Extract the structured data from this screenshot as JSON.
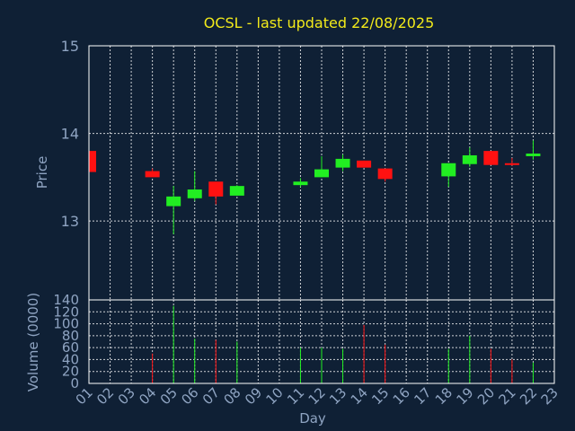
{
  "chart_data": {
    "type": "candlestick",
    "title": "OCSL - last updated 22/08/2025",
    "price_panel": {
      "ylabel": "Price",
      "ylim": [
        12.1,
        15
      ],
      "yticks": [
        "13",
        "14",
        "15"
      ],
      "grid": true
    },
    "volume_panel": {
      "ylabel": "Volume (0000)",
      "ylim": [
        0,
        140
      ],
      "yticks": [
        "0",
        "20",
        "40",
        "60",
        "80",
        "100",
        "120",
        "140"
      ],
      "grid": true
    },
    "xlabel": "Day",
    "x_ticks": [
      "01",
      "02",
      "03",
      "04",
      "05",
      "06",
      "07",
      "08",
      "09",
      "10",
      "11",
      "12",
      "13",
      "14",
      "15",
      "16",
      "17",
      "18",
      "19",
      "20",
      "21",
      "22",
      "23"
    ],
    "up_color": "#22ee22",
    "down_color": "#ff1111",
    "candles": [
      {
        "day": "01",
        "open": 13.8,
        "high": 13.82,
        "low": 13.56,
        "close": 13.56,
        "volume": 0
      },
      {
        "day": "04",
        "open": 13.57,
        "high": 13.6,
        "low": 13.5,
        "close": 13.5,
        "volume": 50
      },
      {
        "day": "05",
        "open": 13.17,
        "high": 13.4,
        "low": 12.85,
        "close": 13.28,
        "volume": 130
      },
      {
        "day": "06",
        "open": 13.26,
        "high": 13.57,
        "low": 13.23,
        "close": 13.36,
        "volume": 75
      },
      {
        "day": "07",
        "open": 13.45,
        "high": 13.45,
        "low": 13.19,
        "close": 13.28,
        "volume": 73
      },
      {
        "day": "08",
        "open": 13.29,
        "high": 13.41,
        "low": 13.29,
        "close": 13.4,
        "volume": 70
      },
      {
        "day": "11",
        "open": 13.41,
        "high": 13.49,
        "low": 13.39,
        "close": 13.45,
        "volume": 60
      },
      {
        "day": "12",
        "open": 13.5,
        "high": 13.74,
        "low": 13.5,
        "close": 13.59,
        "volume": 60
      },
      {
        "day": "13",
        "open": 13.61,
        "high": 13.76,
        "low": 13.57,
        "close": 13.71,
        "volume": 58
      },
      {
        "day": "14",
        "open": 13.69,
        "high": 13.69,
        "low": 13.61,
        "close": 13.61,
        "volume": 98
      },
      {
        "day": "15",
        "open": 13.6,
        "high": 13.6,
        "low": 13.45,
        "close": 13.48,
        "volume": 65
      },
      {
        "day": "18",
        "open": 13.51,
        "high": 13.66,
        "low": 13.39,
        "close": 13.66,
        "volume": 58
      },
      {
        "day": "19",
        "open": 13.65,
        "high": 13.84,
        "low": 13.62,
        "close": 13.75,
        "volume": 80
      },
      {
        "day": "20",
        "open": 13.8,
        "high": 13.8,
        "low": 13.64,
        "close": 13.64,
        "volume": 58
      },
      {
        "day": "21",
        "open": 13.66,
        "high": 13.72,
        "low": 13.63,
        "close": 13.64,
        "volume": 40
      },
      {
        "day": "22",
        "open": 13.74,
        "high": 13.92,
        "low": 13.7,
        "close": 13.77,
        "volume": 35
      }
    ]
  },
  "colors": {
    "background": "#0f2035",
    "frame": "#ffffff",
    "grid": "#ffffff",
    "title": "#f2ea1a",
    "axis_text": "#8fa4c2"
  }
}
